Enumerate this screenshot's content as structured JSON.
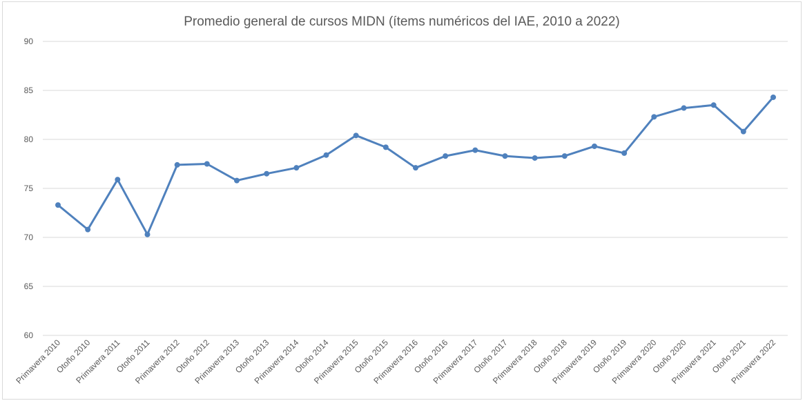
{
  "chart_data": {
    "type": "line",
    "title": "Promedio general de cursos MIDN (ítems numéricos del IAE, 2010 a 2022)",
    "xlabel": "",
    "ylabel": "",
    "ylim": [
      60,
      90
    ],
    "yticks": [
      60,
      65,
      70,
      75,
      80,
      85,
      90
    ],
    "grid": true,
    "legend": "none",
    "color": "#4f81bd",
    "categories": [
      "Primavera 2010",
      "Otoño 2010",
      "Primavera 2011",
      "Otoño 2011",
      "Primavera 2012",
      "Otoño 2012",
      "Primavera 2013",
      "Otoño 2013",
      "Primavera 2014",
      "Otoño 2014",
      "Primavera 2015",
      "Otoño 2015",
      "Primavera 2016",
      "Otoño 2016",
      "Primavera 2017",
      "Otoño 2017",
      "Primavera 2018",
      "Otoño 2018",
      "Primavera 2019",
      "Otoño 2019",
      "Primavera 2020",
      "Otoño 2020",
      "Primavera 2021",
      "Otoño 2021",
      "Primavera 2022"
    ],
    "series": [
      {
        "values": [
          73.3,
          70.8,
          75.9,
          70.3,
          77.4,
          77.5,
          75.8,
          76.5,
          77.1,
          78.4,
          80.4,
          79.2,
          77.1,
          78.3,
          78.9,
          78.3,
          78.1,
          78.3,
          79.3,
          78.6,
          82.3,
          83.2,
          83.5,
          80.8,
          84.3
        ]
      }
    ]
  }
}
